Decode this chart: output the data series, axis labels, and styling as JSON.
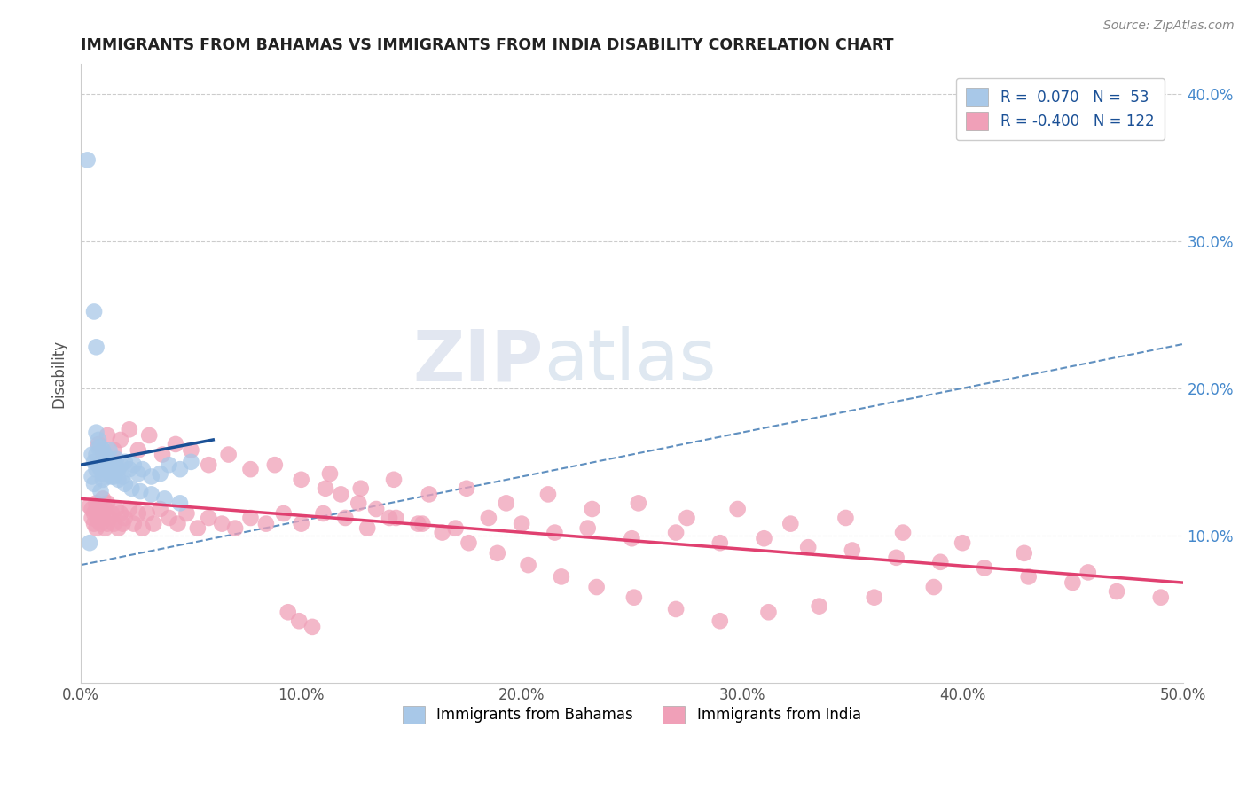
{
  "title": "IMMIGRANTS FROM BAHAMAS VS IMMIGRANTS FROM INDIA DISABILITY CORRELATION CHART",
  "source": "Source: ZipAtlas.com",
  "ylabel": "Disability",
  "watermark_zip": "ZIP",
  "watermark_atlas": "atlas",
  "xlim": [
    0.0,
    0.5
  ],
  "ylim": [
    0.0,
    0.42
  ],
  "xtick_labels": [
    "0.0%",
    "10.0%",
    "20.0%",
    "30.0%",
    "40.0%",
    "50.0%"
  ],
  "xtick_values": [
    0.0,
    0.1,
    0.2,
    0.3,
    0.4,
    0.5
  ],
  "ytick_labels": [
    "10.0%",
    "20.0%",
    "30.0%",
    "40.0%"
  ],
  "ytick_values": [
    0.1,
    0.2,
    0.3,
    0.4
  ],
  "bahamas_color": "#a8c8e8",
  "india_color": "#f0a0b8",
  "bahamas_line_color": "#1a5096",
  "india_line_color": "#e04070",
  "dashed_line_color": "#6090c0",
  "legend_r1": "R =  0.070",
  "legend_n1": "N =  53",
  "legend_r2": "R = -0.400",
  "legend_n2": "N = 122",
  "bahamas_x": [
    0.003,
    0.004,
    0.005,
    0.005,
    0.006,
    0.006,
    0.007,
    0.007,
    0.007,
    0.008,
    0.008,
    0.009,
    0.009,
    0.01,
    0.01,
    0.01,
    0.011,
    0.011,
    0.012,
    0.012,
    0.013,
    0.013,
    0.014,
    0.015,
    0.016,
    0.017,
    0.018,
    0.019,
    0.02,
    0.022,
    0.024,
    0.026,
    0.028,
    0.032,
    0.036,
    0.04,
    0.045,
    0.05,
    0.006,
    0.007,
    0.008,
    0.009,
    0.01,
    0.011,
    0.013,
    0.015,
    0.017,
    0.02,
    0.023,
    0.027,
    0.032,
    0.038,
    0.045
  ],
  "bahamas_y": [
    0.355,
    0.095,
    0.14,
    0.155,
    0.135,
    0.15,
    0.145,
    0.155,
    0.17,
    0.148,
    0.16,
    0.13,
    0.145,
    0.138,
    0.15,
    0.158,
    0.145,
    0.155,
    0.14,
    0.152,
    0.145,
    0.158,
    0.14,
    0.148,
    0.152,
    0.145,
    0.148,
    0.14,
    0.15,
    0.145,
    0.148,
    0.142,
    0.145,
    0.14,
    0.142,
    0.148,
    0.145,
    0.15,
    0.252,
    0.228,
    0.165,
    0.16,
    0.142,
    0.148,
    0.145,
    0.14,
    0.138,
    0.135,
    0.132,
    0.13,
    0.128,
    0.125,
    0.122
  ],
  "india_x": [
    0.004,
    0.005,
    0.005,
    0.006,
    0.006,
    0.007,
    0.007,
    0.007,
    0.008,
    0.008,
    0.009,
    0.009,
    0.01,
    0.01,
    0.011,
    0.011,
    0.012,
    0.012,
    0.013,
    0.014,
    0.015,
    0.016,
    0.017,
    0.018,
    0.019,
    0.02,
    0.022,
    0.024,
    0.026,
    0.028,
    0.03,
    0.033,
    0.036,
    0.04,
    0.044,
    0.048,
    0.053,
    0.058,
    0.064,
    0.07,
    0.077,
    0.084,
    0.092,
    0.1,
    0.11,
    0.12,
    0.13,
    0.14,
    0.155,
    0.17,
    0.185,
    0.2,
    0.215,
    0.23,
    0.25,
    0.27,
    0.29,
    0.31,
    0.33,
    0.35,
    0.37,
    0.39,
    0.41,
    0.43,
    0.45,
    0.47,
    0.49,
    0.008,
    0.01,
    0.012,
    0.015,
    0.018,
    0.022,
    0.026,
    0.031,
    0.037,
    0.043,
    0.05,
    0.058,
    0.067,
    0.077,
    0.088,
    0.1,
    0.113,
    0.127,
    0.142,
    0.158,
    0.175,
    0.193,
    0.212,
    0.232,
    0.253,
    0.275,
    0.298,
    0.322,
    0.347,
    0.373,
    0.4,
    0.428,
    0.457,
    0.387,
    0.36,
    0.335,
    0.312,
    0.29,
    0.27,
    0.251,
    0.234,
    0.218,
    0.203,
    0.189,
    0.176,
    0.164,
    0.153,
    0.143,
    0.134,
    0.126,
    0.118,
    0.111,
    0.105,
    0.099,
    0.094
  ],
  "india_y": [
    0.12,
    0.118,
    0.112,
    0.115,
    0.108,
    0.118,
    0.105,
    0.122,
    0.11,
    0.115,
    0.108,
    0.118,
    0.112,
    0.125,
    0.105,
    0.118,
    0.108,
    0.122,
    0.112,
    0.115,
    0.108,
    0.118,
    0.105,
    0.115,
    0.108,
    0.112,
    0.118,
    0.108,
    0.115,
    0.105,
    0.115,
    0.108,
    0.118,
    0.112,
    0.108,
    0.115,
    0.105,
    0.112,
    0.108,
    0.105,
    0.112,
    0.108,
    0.115,
    0.108,
    0.115,
    0.112,
    0.105,
    0.112,
    0.108,
    0.105,
    0.112,
    0.108,
    0.102,
    0.105,
    0.098,
    0.102,
    0.095,
    0.098,
    0.092,
    0.09,
    0.085,
    0.082,
    0.078,
    0.072,
    0.068,
    0.062,
    0.058,
    0.162,
    0.155,
    0.168,
    0.158,
    0.165,
    0.172,
    0.158,
    0.168,
    0.155,
    0.162,
    0.158,
    0.148,
    0.155,
    0.145,
    0.148,
    0.138,
    0.142,
    0.132,
    0.138,
    0.128,
    0.132,
    0.122,
    0.128,
    0.118,
    0.122,
    0.112,
    0.118,
    0.108,
    0.112,
    0.102,
    0.095,
    0.088,
    0.075,
    0.065,
    0.058,
    0.052,
    0.048,
    0.042,
    0.05,
    0.058,
    0.065,
    0.072,
    0.08,
    0.088,
    0.095,
    0.102,
    0.108,
    0.112,
    0.118,
    0.122,
    0.128,
    0.132,
    0.038,
    0.042,
    0.048
  ]
}
